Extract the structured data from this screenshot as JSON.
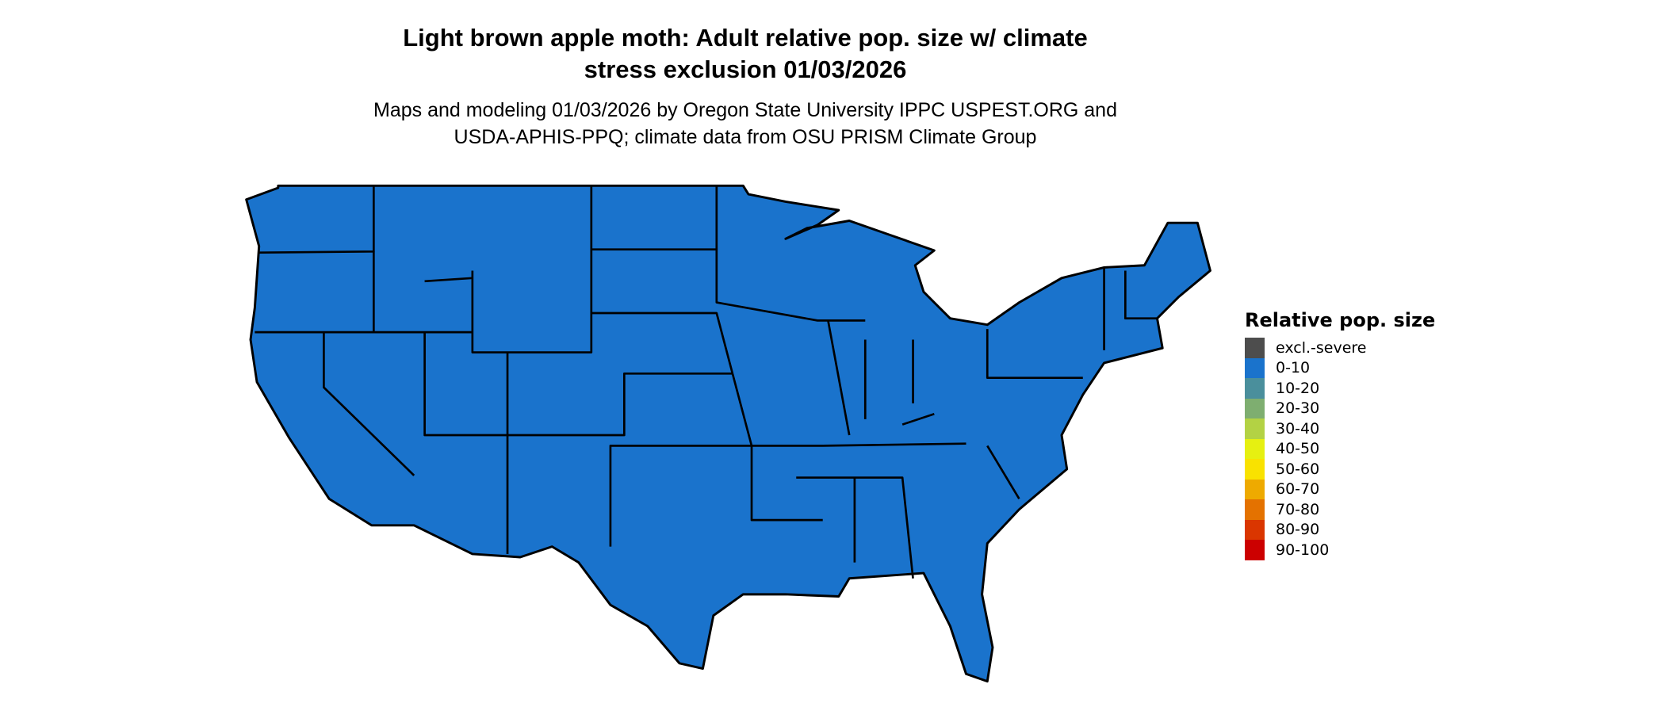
{
  "title_line1": "Light brown apple moth: Adult relative pop. size w/ climate",
  "title_line2": "stress exclusion 01/03/2026",
  "subtitle_line1": "Maps and modeling 01/03/2026 by Oregon State University IPPC USPEST.ORG and",
  "subtitle_line2": "USDA-APHIS-PPQ; climate data from OSU PRISM Climate Group",
  "map": {
    "region": "Contiguous United States",
    "fill_category": "0-10",
    "fill_color": "#1a73cc",
    "border_color": "#000000"
  },
  "legend": {
    "title": "Relative pop. size",
    "items": [
      {
        "label": "excl.-severe",
        "color": "#4d4d4d"
      },
      {
        "label": "0-10",
        "color": "#1a73cc"
      },
      {
        "label": "10-20",
        "color": "#4a8f9c"
      },
      {
        "label": "20-30",
        "color": "#7eae70"
      },
      {
        "label": "30-40",
        "color": "#b3d244"
      },
      {
        "label": "40-50",
        "color": "#e6f011"
      },
      {
        "label": "50-60",
        "color": "#f9e200"
      },
      {
        "label": "60-70",
        "color": "#eeaa00"
      },
      {
        "label": "70-80",
        "color": "#e47200"
      },
      {
        "label": "80-90",
        "color": "#da3600"
      },
      {
        "label": "90-100",
        "color": "#cc0000"
      }
    ]
  }
}
